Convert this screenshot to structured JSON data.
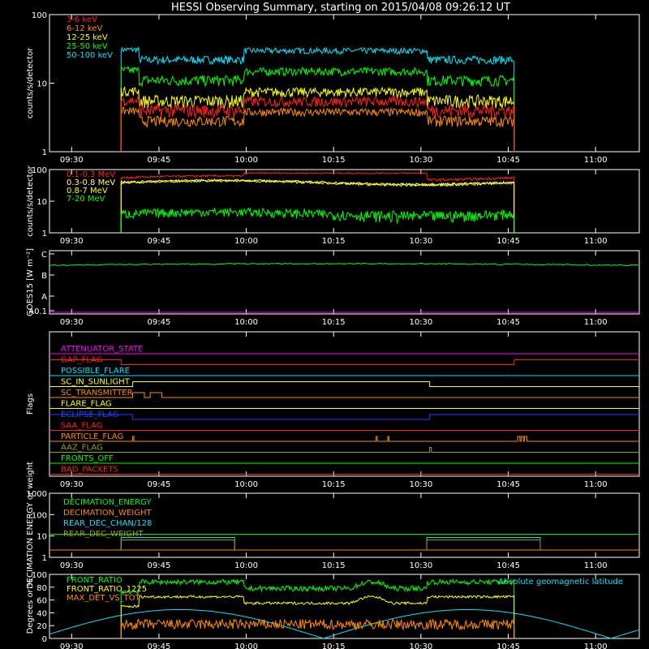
{
  "chart_data": {
    "title": "HESSI Observing Summary, starting on 2015/04/08 09:26:12 UT",
    "time_ticks": [
      "09:30",
      "09:45",
      "10:00",
      "10:15",
      "10:30",
      "10:45",
      "11:00"
    ],
    "panels": [
      {
        "id": "lightcurve-low",
        "type": "line",
        "ylabel": "counts/s/detector",
        "yscale": "log",
        "ylim": [
          1,
          100
        ],
        "yticks": [
          "1",
          "10",
          "100"
        ],
        "series": [
          {
            "name": "3-6 keV",
            "color": "#ff2020",
            "level": 4.0,
            "noise": 0.9
          },
          {
            "name": "6-12 keV",
            "color": "#ff8c00",
            "level": 2.8,
            "noise": 0.5
          },
          {
            "name": "12-25 keV",
            "color": "#ffff00",
            "level": 5.5,
            "noise": 1.2
          },
          {
            "name": "25-50 keV",
            "color": "#00ff00",
            "level": 11.0,
            "noise": 2.0
          },
          {
            "name": "50-100 keV",
            "color": "#00e5ff",
            "level": 22.0,
            "noise": 3.0
          }
        ]
      },
      {
        "id": "lightcurve-high",
        "type": "line",
        "ylabel": "counts/s/detector",
        "yscale": "log",
        "ylim": [
          1,
          100
        ],
        "yticks": [
          "1",
          "10",
          "100"
        ],
        "series": [
          {
            "name": "0.1-0.3 MeV",
            "color": "#ff2020",
            "level": 55
          },
          {
            "name": "0.3-0.8 MeV",
            "color": "#ffff80",
            "level": 40
          },
          {
            "name": "0.8-7 MeV",
            "color": "#ffff00",
            "level": 38
          },
          {
            "name": "7-20 MeV",
            "color": "#00ff00",
            "level": 4
          }
        ]
      },
      {
        "id": "goes",
        "type": "line",
        "ylabel": "GOES15 [W m⁻²]",
        "yticks": [
          "A0.1",
          "A",
          "B",
          "C"
        ],
        "color": "#00ff00",
        "baseline_color": "#ff00ff"
      },
      {
        "id": "flags",
        "type": "line",
        "ylabel": "Flags",
        "flags": [
          {
            "name": "ATTENUATOR_STATE",
            "color": "#ff00ff"
          },
          {
            "name": "GAP_FLAG",
            "color": "#ff2020"
          },
          {
            "name": "POSSIBLE_FLARE",
            "color": "#00e5ff"
          },
          {
            "name": "SC_IN_SUNLIGHT",
            "color": "#ffff00"
          },
          {
            "name": "SC_TRANSMITTER",
            "color": "#ff8c00"
          },
          {
            "name": "FLARE_FLAG",
            "color": "#ffff00"
          },
          {
            "name": "ECLIPSE_FLAG",
            "color": "#2040ff"
          },
          {
            "name": "SAA_FLAG",
            "color": "#ff2020"
          },
          {
            "name": "PARTICLE_FLAG",
            "color": "#ff8c00"
          },
          {
            "name": "AAZ_FLAG",
            "color": "#a0a000"
          },
          {
            "name": "FRONTS_OFF",
            "color": "#00ff00"
          },
          {
            "name": "BAD_PACKETS",
            "color": "#ff2020"
          }
        ]
      },
      {
        "id": "decimation",
        "type": "line",
        "ylabel": "DECIMATION ENERGY or weight",
        "yscale": "log",
        "ylim": [
          1,
          1000
        ],
        "yticks": [
          "1",
          "10",
          "100",
          "1000"
        ],
        "series": [
          {
            "name": "DECIMATION_ENERGY",
            "color": "#00ff00",
            "level": 12
          },
          {
            "name": "DECIMATION_WEIGHT",
            "color": "#ff8c00",
            "level": 2
          },
          {
            "name": "REAR_DEC_CHAN/128",
            "color": "#00e5ff",
            "level": 8
          },
          {
            "name": "REAR_DEC_WEIGHT",
            "color": "#a0a000",
            "level": 6
          }
        ]
      },
      {
        "id": "ratios",
        "type": "line",
        "ylabel": "Degrees or %",
        "ylim": [
          0,
          100
        ],
        "yticks": [
          "0",
          "20",
          "40",
          "60",
          "80",
          "100"
        ],
        "annotation": "Absolute geomagnetic latitude",
        "annotation_color": "#00e5ff",
        "series": [
          {
            "name": "FRONT_RATIO",
            "color": "#00ff00",
            "level": 88
          },
          {
            "name": "FRONT_RATIO_1225",
            "color": "#ffff00",
            "level": 65
          },
          {
            "name": "MAX_DET_VS_TOT",
            "color": "#ff8c00",
            "level": 22
          }
        ]
      }
    ]
  }
}
